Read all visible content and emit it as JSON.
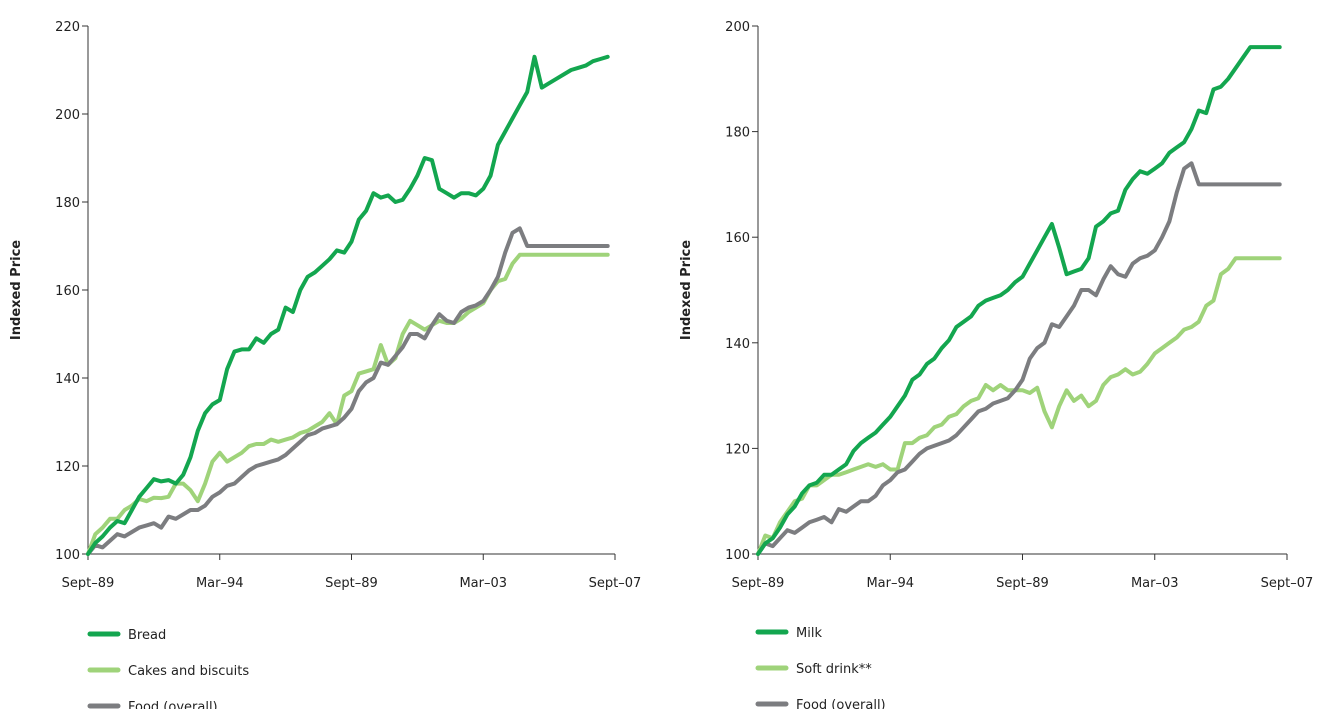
{
  "colors": {
    "bread_milk": "#13a64f",
    "light_green": "#9fd37a",
    "gray": "#7c7d80",
    "axis": "#333333"
  },
  "chart_data": [
    {
      "type": "line",
      "ylabel": "Indexed Price",
      "ylim": [
        100,
        220
      ],
      "yticks": [
        100,
        120,
        140,
        160,
        180,
        200,
        220
      ],
      "xlim": [
        0,
        72
      ],
      "xticks": [
        {
          "x": 0,
          "label": "Sept–89"
        },
        {
          "x": 18,
          "label": "Mar–94"
        },
        {
          "x": 36,
          "label": "Sept–89"
        },
        {
          "x": 54,
          "label": "Mar–03"
        },
        {
          "x": 72,
          "label": "Sept–07"
        }
      ],
      "legend_position": "bottom-left",
      "series": [
        {
          "name": "Bread",
          "color": "#13a64f",
          "x": [
            0,
            1,
            2,
            3,
            4,
            5,
            6,
            7,
            8,
            9,
            10,
            11,
            12,
            13,
            14,
            15,
            16,
            17,
            18,
            19,
            20,
            21,
            22,
            23,
            24,
            25,
            26,
            27,
            28,
            29,
            30,
            31,
            32,
            33,
            34,
            35,
            36,
            37,
            38,
            39,
            40,
            41,
            42,
            43,
            44,
            45,
            46,
            47,
            48,
            49,
            50,
            51,
            52,
            53,
            54,
            55,
            56,
            57,
            58,
            59,
            60,
            61,
            62,
            63,
            64,
            65,
            66,
            67,
            68,
            69,
            70,
            71
          ],
          "values": [
            100,
            102.5,
            104,
            106,
            107.5,
            107,
            110,
            113,
            115,
            117,
            116.5,
            116.8,
            116,
            118,
            122,
            128,
            132,
            134,
            135,
            142,
            146,
            146.5,
            146.5,
            149,
            148,
            150,
            151,
            156,
            155,
            160,
            163,
            164,
            165.5,
            167,
            169,
            168.5,
            171,
            176,
            178,
            182,
            181,
            181.5,
            180,
            180.5,
            183,
            186,
            190,
            189.5,
            183,
            182,
            181,
            182,
            182,
            181.5,
            183,
            186,
            193,
            196,
            199,
            202,
            205,
            213,
            206,
            207,
            208,
            209,
            210,
            210.5,
            211,
            212,
            212.5,
            213
          ]
        },
        {
          "name": "Cakes and biscuits",
          "color": "#9fd37a",
          "x": [
            0,
            1,
            2,
            3,
            4,
            5,
            6,
            7,
            8,
            9,
            10,
            11,
            12,
            13,
            14,
            15,
            16,
            17,
            18,
            19,
            20,
            21,
            22,
            23,
            24,
            25,
            26,
            27,
            28,
            29,
            30,
            31,
            32,
            33,
            34,
            35,
            36,
            37,
            38,
            39,
            40,
            41,
            42,
            43,
            44,
            45,
            46,
            47,
            48,
            49,
            50,
            51,
            52,
            53,
            54,
            55,
            56,
            57,
            58,
            59,
            60,
            61,
            62,
            63,
            64,
            65,
            66,
            67,
            68,
            69,
            70,
            71
          ],
          "values": [
            100,
            104.5,
            106,
            108,
            108,
            110,
            111,
            112.5,
            112,
            112.8,
            112.7,
            113,
            116,
            116,
            114.5,
            112,
            116,
            121,
            123,
            121,
            122,
            123,
            124.5,
            125,
            125,
            126,
            125.5,
            126,
            126.5,
            127.5,
            128,
            129,
            130,
            132,
            129.5,
            136,
            137,
            141,
            141.5,
            142,
            147.5,
            143,
            144.5,
            150,
            153,
            152,
            151,
            152,
            153,
            152.5,
            152.5,
            153.5,
            155,
            156,
            157,
            160,
            162,
            162.5,
            166,
            168,
            168,
            168,
            168,
            168,
            168,
            168,
            168,
            168,
            168,
            168,
            168,
            168
          ]
        },
        {
          "name": "Food (overall)",
          "color": "#7c7d80",
          "x": [
            0,
            1,
            2,
            3,
            4,
            5,
            6,
            7,
            8,
            9,
            10,
            11,
            12,
            13,
            14,
            15,
            16,
            17,
            18,
            19,
            20,
            21,
            22,
            23,
            24,
            25,
            26,
            27,
            28,
            29,
            30,
            31,
            32,
            33,
            34,
            35,
            36,
            37,
            38,
            39,
            40,
            41,
            42,
            43,
            44,
            45,
            46,
            47,
            48,
            49,
            50,
            51,
            52,
            53,
            54,
            55,
            56,
            57,
            58,
            59,
            60,
            61,
            62,
            63,
            64,
            65,
            66,
            67,
            68,
            69,
            70,
            71
          ],
          "values": [
            100,
            102,
            101.5,
            103,
            104.5,
            104,
            105,
            106,
            106.5,
            107,
            106,
            108.5,
            108,
            109,
            110,
            110,
            111,
            113,
            114,
            115.5,
            116,
            117.5,
            119,
            120,
            120.5,
            121,
            121.5,
            122.5,
            124,
            125.5,
            127,
            127.5,
            128.5,
            129,
            129.5,
            131,
            133,
            137,
            139,
            140,
            143.5,
            143,
            145,
            147,
            150,
            150,
            149,
            152,
            154.5,
            153,
            152.5,
            155,
            156,
            156.5,
            157.5,
            160,
            163,
            168.5,
            173,
            174,
            170,
            170,
            170,
            170,
            170,
            170,
            170,
            170,
            170,
            170,
            170,
            170
          ]
        }
      ]
    },
    {
      "type": "line",
      "ylabel": "Indexed Price",
      "ylim": [
        100,
        200
      ],
      "yticks": [
        100,
        120,
        140,
        160,
        180,
        200
      ],
      "xlim": [
        0,
        72
      ],
      "xticks": [
        {
          "x": 0,
          "label": "Sept–89"
        },
        {
          "x": 18,
          "label": "Mar–94"
        },
        {
          "x": 36,
          "label": "Sept–89"
        },
        {
          "x": 54,
          "label": "Mar–03"
        },
        {
          "x": 72,
          "label": "Sept–07"
        }
      ],
      "legend_position": "bottom-left",
      "series": [
        {
          "name": "Milk",
          "color": "#13a64f",
          "x": [
            0,
            1,
            2,
            3,
            4,
            5,
            6,
            7,
            8,
            9,
            10,
            11,
            12,
            13,
            14,
            15,
            16,
            17,
            18,
            19,
            20,
            21,
            22,
            23,
            24,
            25,
            26,
            27,
            28,
            29,
            30,
            31,
            32,
            33,
            34,
            35,
            36,
            37,
            38,
            39,
            40,
            41,
            42,
            43,
            44,
            45,
            46,
            47,
            48,
            49,
            50,
            51,
            52,
            53,
            54,
            55,
            56,
            57,
            58,
            59,
            60,
            61,
            62,
            63,
            64,
            65,
            66,
            67,
            68,
            69,
            70,
            71
          ],
          "values": [
            100,
            102,
            103,
            105,
            107.5,
            109,
            111.5,
            113,
            113.5,
            115,
            115,
            116,
            117,
            119.5,
            121,
            122,
            123,
            124.5,
            126,
            128,
            130,
            133,
            134,
            136,
            137,
            139,
            140.5,
            143,
            144,
            145,
            147,
            148,
            148.5,
            149,
            150,
            151.5,
            152.5,
            155,
            157.5,
            160,
            162.5,
            158,
            153,
            153.5,
            154,
            156,
            162,
            163,
            164.5,
            165,
            169,
            171,
            172.5,
            172,
            173,
            174,
            176,
            177,
            178,
            180.5,
            184,
            183.5,
            188,
            188.5,
            190,
            192,
            194,
            196,
            196,
            196,
            196,
            196
          ]
        },
        {
          "name": "Soft drink**",
          "color": "#9fd37a",
          "x": [
            0,
            1,
            2,
            3,
            4,
            5,
            6,
            7,
            8,
            9,
            10,
            11,
            12,
            13,
            14,
            15,
            16,
            17,
            18,
            19,
            20,
            21,
            22,
            23,
            24,
            25,
            26,
            27,
            28,
            29,
            30,
            31,
            32,
            33,
            34,
            35,
            36,
            37,
            38,
            39,
            40,
            41,
            42,
            43,
            44,
            45,
            46,
            47,
            48,
            49,
            50,
            51,
            52,
            53,
            54,
            55,
            56,
            57,
            58,
            59,
            60,
            61,
            62,
            63,
            64,
            65,
            66,
            67,
            68,
            69,
            70,
            71
          ],
          "values": [
            100,
            103.5,
            103,
            106,
            108,
            110,
            110.5,
            113,
            113,
            114,
            115,
            115,
            115.5,
            116,
            116.5,
            117,
            116.5,
            117,
            116,
            116,
            121,
            121,
            122,
            122.5,
            124,
            124.5,
            126,
            126.5,
            128,
            129,
            129.5,
            132,
            131,
            132,
            131,
            131,
            131,
            130.5,
            131.5,
            127,
            124,
            128,
            131,
            129,
            130,
            128,
            129,
            132,
            133.5,
            134,
            135,
            134,
            134.5,
            136,
            138,
            139,
            140,
            141,
            142.5,
            143,
            144,
            147,
            148,
            153,
            154,
            156,
            156,
            156,
            156,
            156,
            156,
            156
          ]
        },
        {
          "name": "Food (overall)",
          "color": "#7c7d80",
          "x": [
            0,
            1,
            2,
            3,
            4,
            5,
            6,
            7,
            8,
            9,
            10,
            11,
            12,
            13,
            14,
            15,
            16,
            17,
            18,
            19,
            20,
            21,
            22,
            23,
            24,
            25,
            26,
            27,
            28,
            29,
            30,
            31,
            32,
            33,
            34,
            35,
            36,
            37,
            38,
            39,
            40,
            41,
            42,
            43,
            44,
            45,
            46,
            47,
            48,
            49,
            50,
            51,
            52,
            53,
            54,
            55,
            56,
            57,
            58,
            59,
            60,
            61,
            62,
            63,
            64,
            65,
            66,
            67,
            68,
            69,
            70,
            71
          ],
          "values": [
            100,
            102,
            101.5,
            103,
            104.5,
            104,
            105,
            106,
            106.5,
            107,
            106,
            108.5,
            108,
            109,
            110,
            110,
            111,
            113,
            114,
            115.5,
            116,
            117.5,
            119,
            120,
            120.5,
            121,
            121.5,
            122.5,
            124,
            125.5,
            127,
            127.5,
            128.5,
            129,
            129.5,
            131,
            133,
            137,
            139,
            140,
            143.5,
            143,
            145,
            147,
            150,
            150,
            149,
            152,
            154.5,
            153,
            152.5,
            155,
            156,
            156.5,
            157.5,
            160,
            163,
            168.5,
            173,
            174,
            170,
            170,
            170,
            170,
            170,
            170,
            170,
            170,
            170,
            170,
            170,
            170
          ]
        }
      ]
    }
  ]
}
